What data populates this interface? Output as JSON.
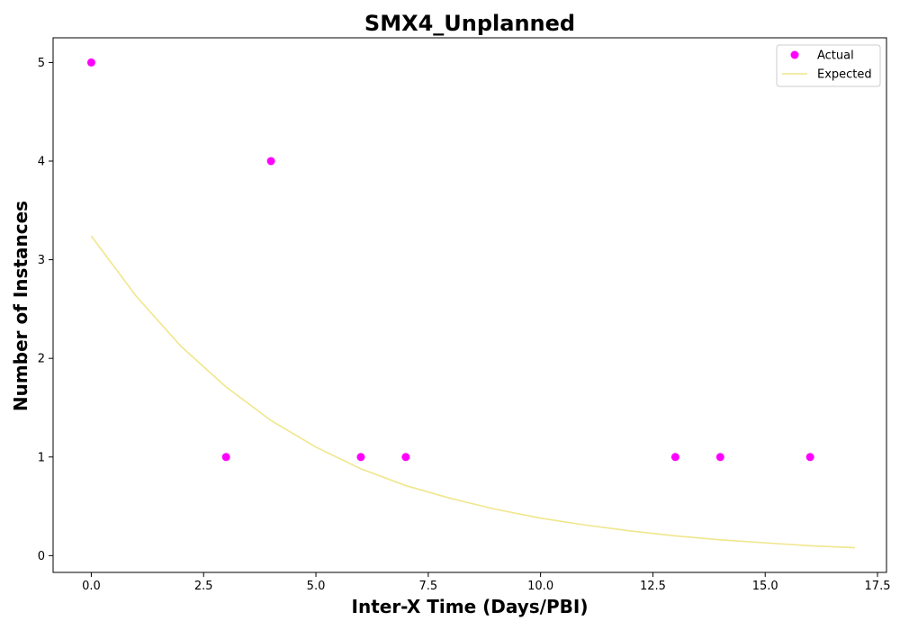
{
  "chart_data": {
    "type": "scatter",
    "title": "SMX4_Unplanned",
    "xlabel": "Inter-X Time (Days/PBI)",
    "ylabel": "Number of Instances",
    "xlim": [
      -0.85,
      17.7
    ],
    "ylim": [
      -0.17,
      5.25
    ],
    "xticks": [
      0.0,
      2.5,
      5.0,
      7.5,
      10.0,
      12.5,
      15.0,
      17.5
    ],
    "xtick_labels": [
      "0.0",
      "2.5",
      "5.0",
      "7.5",
      "10.0",
      "12.5",
      "15.0",
      "17.5"
    ],
    "yticks": [
      0,
      1,
      2,
      3,
      4,
      5
    ],
    "ytick_labels": [
      "0",
      "1",
      "2",
      "3",
      "4",
      "5"
    ],
    "grid": false,
    "legend_position": "top-right",
    "series": [
      {
        "name": "Actual",
        "kind": "scatter",
        "color": "#ff00ff",
        "x": [
          0,
          3,
          4,
          6,
          7,
          13,
          14,
          16
        ],
        "y": [
          5,
          1,
          4,
          1,
          1,
          1,
          1,
          1
        ]
      },
      {
        "name": "Expected",
        "kind": "line",
        "color": "#f0e68c",
        "x": [
          0,
          1,
          2,
          3,
          4,
          5,
          6,
          7,
          8,
          9,
          10,
          11,
          12,
          13,
          14,
          15,
          16,
          17
        ],
        "y": [
          3.24,
          2.63,
          2.12,
          1.71,
          1.37,
          1.1,
          0.88,
          0.71,
          0.58,
          0.47,
          0.38,
          0.31,
          0.25,
          0.2,
          0.16,
          0.13,
          0.1,
          0.08
        ]
      }
    ]
  }
}
